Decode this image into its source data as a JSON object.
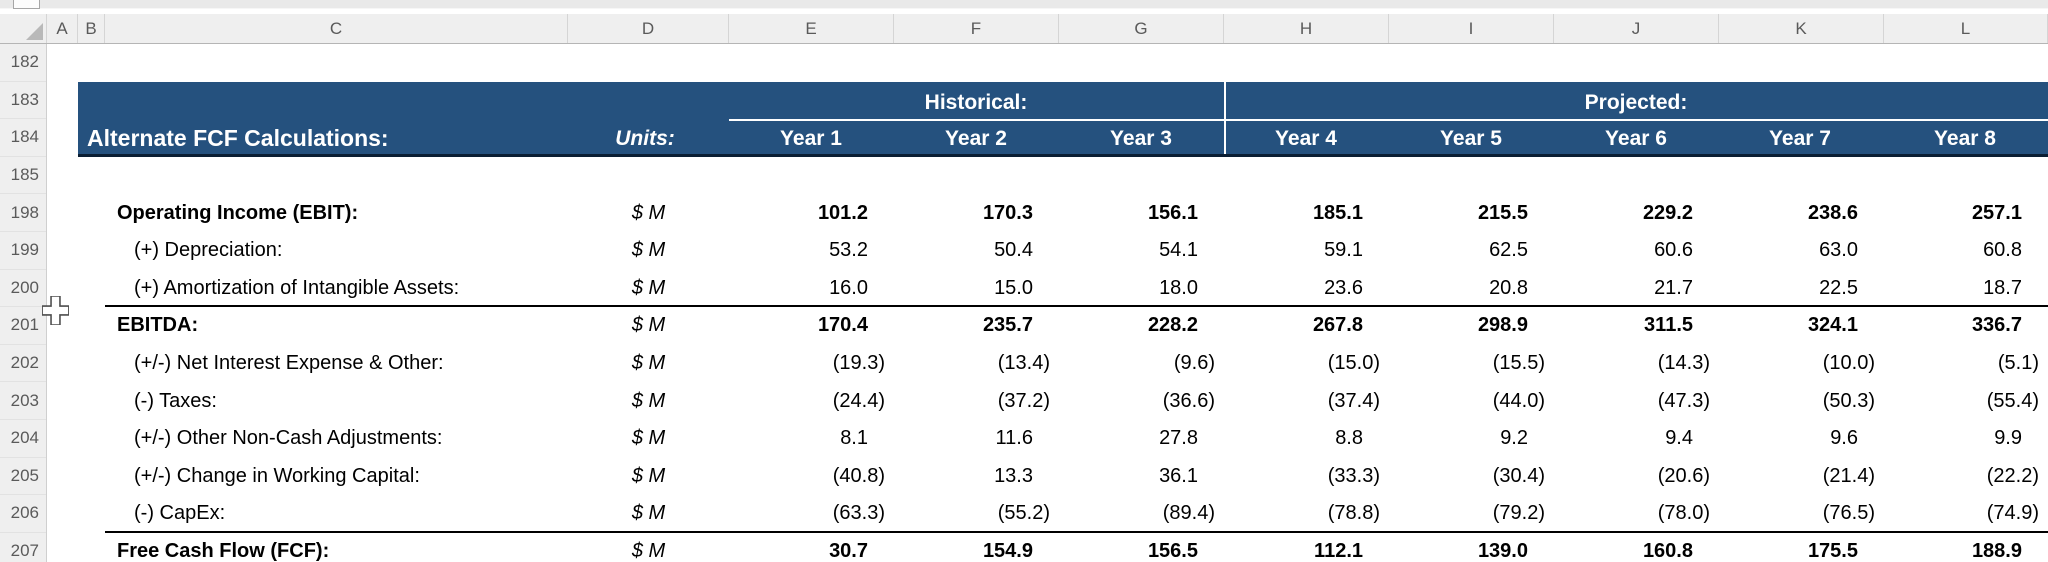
{
  "app": {
    "title": "Excel worksheet - Alternate FCF Calculations"
  },
  "grid": {
    "column_headers": [
      "A",
      "B",
      "C",
      "D",
      "E",
      "F",
      "G",
      "H",
      "I",
      "J",
      "K",
      "L"
    ],
    "row_headers": [
      "182",
      "183",
      "184",
      "185",
      "198",
      "199",
      "200",
      "201",
      "202",
      "203",
      "204",
      "205",
      "206",
      "207"
    ]
  },
  "banner": {
    "title": "Alternate FCF Calculations:",
    "units_label": "Units:",
    "group_headers": [
      {
        "label": "Historical:"
      },
      {
        "label": "Projected:"
      }
    ],
    "year_headers": [
      "Year 1",
      "Year 2",
      "Year 3",
      "Year 4",
      "Year 5",
      "Year 6",
      "Year 7",
      "Year 8"
    ]
  },
  "table": {
    "rows": [
      {
        "row": "198",
        "label": "Operating Income (EBIT):",
        "units": "$ M",
        "bold": true,
        "indent": false,
        "underline": false,
        "values": [
          "101.2",
          "170.3",
          "156.1",
          "185.1",
          "215.5",
          "229.2",
          "238.6",
          "257.1"
        ]
      },
      {
        "row": "199",
        "label": "(+) Depreciation:",
        "units": "$ M",
        "bold": false,
        "indent": true,
        "underline": false,
        "values": [
          "53.2",
          "50.4",
          "54.1",
          "59.1",
          "62.5",
          "60.6",
          "63.0",
          "60.8"
        ]
      },
      {
        "row": "200",
        "label": "(+) Amortization of Intangible Assets:",
        "units": "$ M",
        "bold": false,
        "indent": true,
        "underline": true,
        "values": [
          "16.0",
          "15.0",
          "18.0",
          "23.6",
          "20.8",
          "21.7",
          "22.5",
          "18.7"
        ]
      },
      {
        "row": "201",
        "label": "EBITDA:",
        "units": "$ M",
        "bold": true,
        "indent": false,
        "underline": false,
        "values": [
          "170.4",
          "235.7",
          "228.2",
          "267.8",
          "298.9",
          "311.5",
          "324.1",
          "336.7"
        ]
      },
      {
        "row": "202",
        "label": "(+/-) Net Interest Expense & Other:",
        "units": "$ M",
        "bold": false,
        "indent": true,
        "underline": false,
        "values": [
          "(19.3)",
          "(13.4)",
          "(9.6)",
          "(15.0)",
          "(15.5)",
          "(14.3)",
          "(10.0)",
          "(5.1)"
        ]
      },
      {
        "row": "203",
        "label": "(-) Taxes:",
        "units": "$ M",
        "bold": false,
        "indent": true,
        "underline": false,
        "values": [
          "(24.4)",
          "(37.2)",
          "(36.6)",
          "(37.4)",
          "(44.0)",
          "(47.3)",
          "(50.3)",
          "(55.4)"
        ]
      },
      {
        "row": "204",
        "label": "(+/-) Other Non-Cash Adjustments:",
        "units": "$ M",
        "bold": false,
        "indent": true,
        "underline": false,
        "values": [
          "8.1",
          "11.6",
          "27.8",
          "8.8",
          "9.2",
          "9.4",
          "9.6",
          "9.9"
        ]
      },
      {
        "row": "205",
        "label": "(+/-) Change in Working Capital:",
        "units": "$ M",
        "bold": false,
        "indent": true,
        "underline": false,
        "values": [
          "(40.8)",
          "13.3",
          "36.1",
          "(33.3)",
          "(30.4)",
          "(20.6)",
          "(21.4)",
          "(22.2)"
        ]
      },
      {
        "row": "206",
        "label": "(-) CapEx:",
        "units": "$ M",
        "bold": false,
        "indent": true,
        "underline": true,
        "values": [
          "(63.3)",
          "(55.2)",
          "(89.4)",
          "(78.8)",
          "(79.2)",
          "(78.0)",
          "(76.5)",
          "(74.9)"
        ]
      },
      {
        "row": "207",
        "label": "Free Cash Flow (FCF):",
        "units": "$ M",
        "bold": true,
        "indent": false,
        "underline": false,
        "values": [
          "30.7",
          "154.9",
          "156.5",
          "112.1",
          "139.0",
          "160.8",
          "175.5",
          "188.9"
        ]
      }
    ]
  },
  "colors": {
    "banner_blue": "#25517e",
    "banner_border": "#0b1e33",
    "header_bg": "#efefef",
    "header_text": "#5a5a5a"
  },
  "cursor": {
    "icon": "excel-plus-cursor"
  }
}
